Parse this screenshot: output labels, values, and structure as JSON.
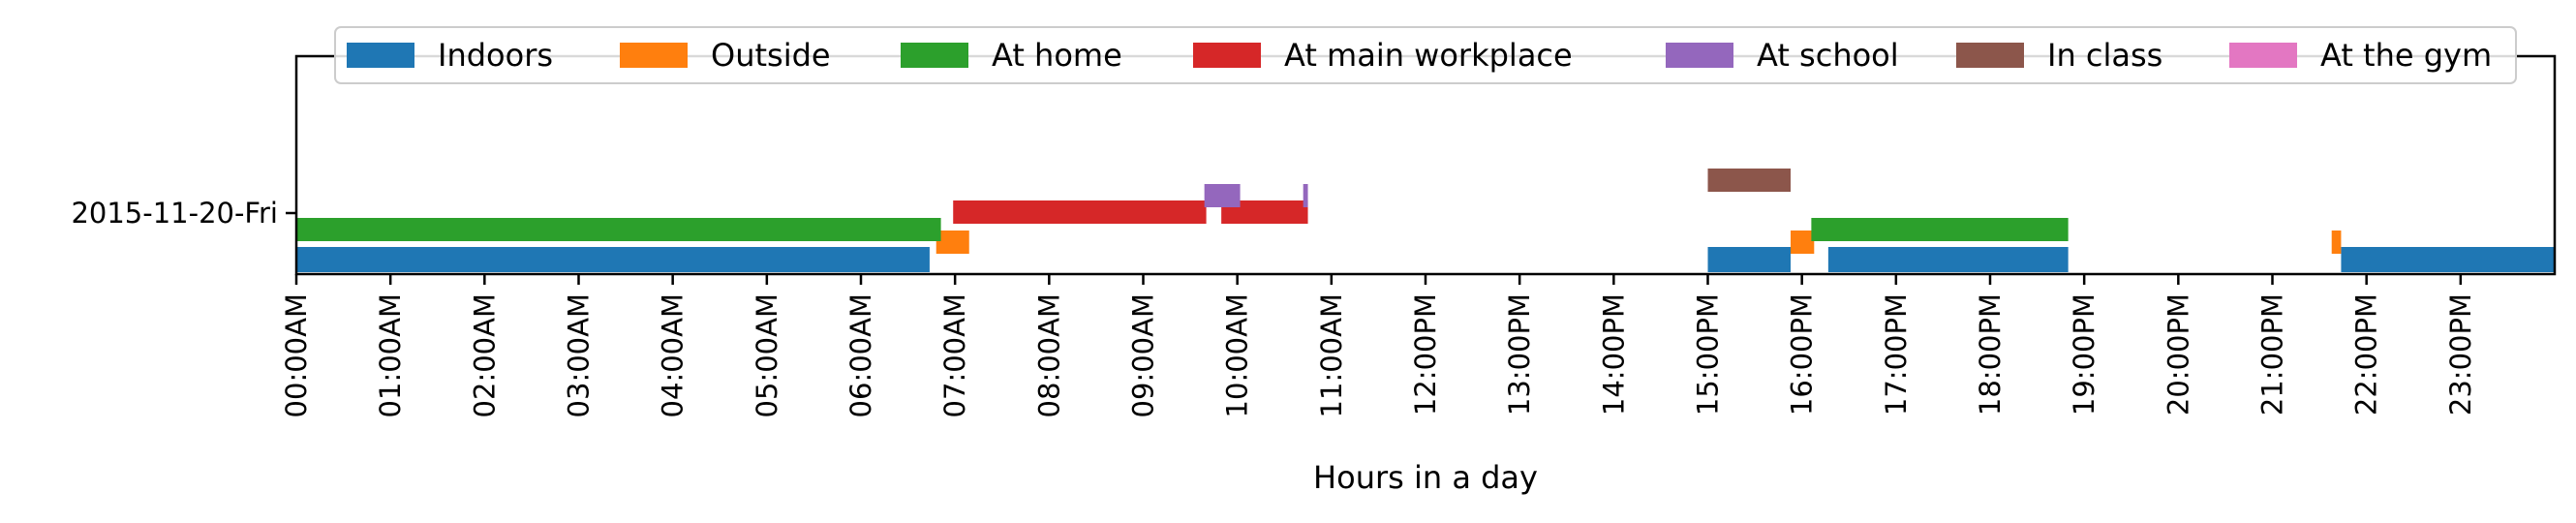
{
  "chart_data": {
    "type": "timeline",
    "xlabel": "Hours in a day",
    "ylabel": "",
    "xlim": [
      0,
      24
    ],
    "categories": [
      "2015-11-20-Fri"
    ],
    "x_ticks": [
      "00:00AM",
      "01:00AM",
      "02:00AM",
      "03:00AM",
      "04:00AM",
      "05:00AM",
      "06:00AM",
      "07:00AM",
      "08:00AM",
      "09:00AM",
      "10:00AM",
      "11:00AM",
      "12:00PM",
      "13:00PM",
      "14:00PM",
      "15:00PM",
      "16:00PM",
      "17:00PM",
      "18:00PM",
      "19:00PM",
      "20:00PM",
      "21:00PM",
      "22:00PM",
      "23:00PM"
    ],
    "legend_placement": "top-center",
    "grid": false,
    "series": [
      {
        "name": "Indoors",
        "color": "#1f77b4",
        "intervals": [
          [
            0.0,
            6.73
          ],
          [
            15.0,
            15.88
          ],
          [
            16.28,
            18.83
          ],
          [
            21.73,
            24.0
          ]
        ]
      },
      {
        "name": "Outside",
        "color": "#ff7f0e",
        "intervals": [
          [
            6.8,
            7.15
          ],
          [
            15.88,
            16.13
          ],
          [
            21.63,
            21.73
          ]
        ]
      },
      {
        "name": "At home",
        "color": "#2ca02c",
        "intervals": [
          [
            0.0,
            6.85
          ],
          [
            16.1,
            18.83
          ]
        ]
      },
      {
        "name": "At main workplace",
        "color": "#d62728",
        "intervals": [
          [
            6.98,
            9.67
          ],
          [
            9.83,
            10.75
          ]
        ]
      },
      {
        "name": "At school",
        "color": "#9467bd",
        "intervals": [
          [
            9.65,
            10.03
          ],
          [
            10.7,
            10.75
          ]
        ]
      },
      {
        "name": "In class",
        "color": "#8c564b",
        "intervals": [
          [
            15.0,
            15.88
          ]
        ]
      },
      {
        "name": "At the gym",
        "color": "#e377c2",
        "intervals": []
      }
    ]
  }
}
